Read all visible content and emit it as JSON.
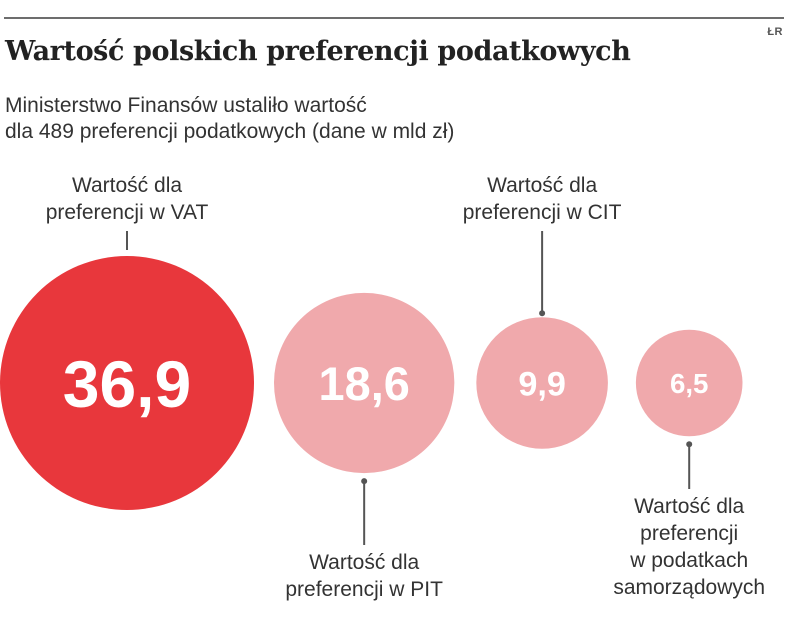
{
  "source_mark": "ŁR",
  "chart_data": {
    "type": "bubble",
    "title": "Wartość polskich preferencji podatkowych",
    "subtitle_lines": [
      "Ministerstwo Finansów ustaliło wartość",
      "dla 489 preferencji podatkowych (dane w mld zł)"
    ],
    "unit": "mld zł",
    "items": [
      {
        "value": 36.9,
        "value_label": "36,9",
        "label_lines": [
          "Wartość dla",
          "preferencji w VAT"
        ],
        "label_position": "top",
        "color": "#e8373c"
      },
      {
        "value": 18.6,
        "value_label": "18,6",
        "label_lines": [
          "Wartość dla",
          "preferencji w PIT"
        ],
        "label_position": "bottom",
        "color": "#f0a9ac"
      },
      {
        "value": 9.9,
        "value_label": "9,9",
        "label_lines": [
          "Wartość dla",
          "preferencji w CIT"
        ],
        "label_position": "top",
        "color": "#f0a9ac"
      },
      {
        "value": 6.5,
        "value_label": "6,5",
        "label_lines": [
          "Wartość dla",
          "preferencji",
          "w podatkach",
          "samorządowych"
        ],
        "label_position": "bottom",
        "color": "#f0a9ac"
      }
    ]
  }
}
